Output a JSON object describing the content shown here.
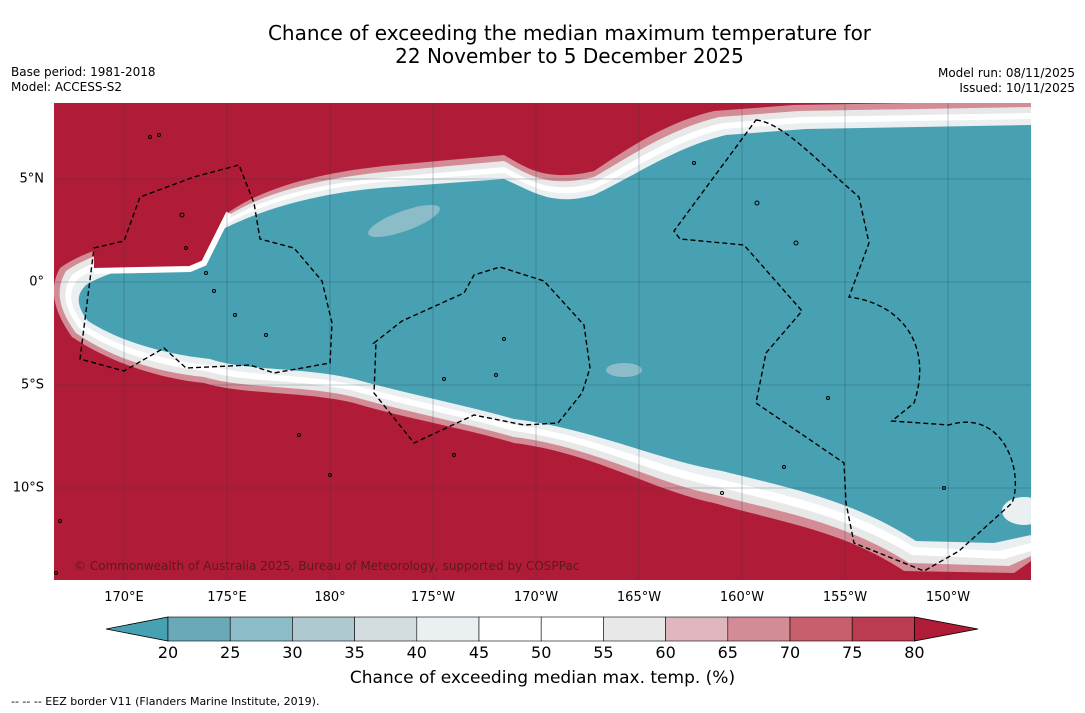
{
  "title": {
    "line1": "Chance of exceeding the median maximum temperature for",
    "line2": "22 November to 5 December 2025"
  },
  "meta_left": {
    "base_period": "Base period: 1981-2018",
    "model": "Model: ACCESS-S2"
  },
  "meta_right": {
    "model_run": "Model run: 08/11/2025",
    "issued": "Issued: 10/11/2025"
  },
  "map": {
    "copyright": "© Commonwealth of Australia 2025, Bureau of Meteorology, supported by COSPPac",
    "longitude_labels": [
      "170°E",
      "175°E",
      "180°",
      "175°W",
      "170°W",
      "165°W",
      "160°W",
      "155°W",
      "150°W"
    ],
    "latitude_labels": [
      "5°N",
      "0°",
      "5°S",
      "10°S"
    ],
    "colors": {
      "high": "#b01c38",
      "low": "#48a1b2",
      "eez_border": "#000000"
    }
  },
  "colorbar": {
    "ticks": [
      "20",
      "25",
      "30",
      "35",
      "40",
      "45",
      "50",
      "55",
      "60",
      "65",
      "70",
      "75",
      "80"
    ],
    "colors": [
      "#48a1b2",
      "#6aaab8",
      "#8cbcc7",
      "#aec9cf",
      "#d3dcdf",
      "#eaeff1",
      "#ffffff",
      "#ffffff",
      "#e8e8e8",
      "#dfb6bd",
      "#d38b95",
      "#c75f6d",
      "#bb3b50",
      "#b01c38"
    ],
    "label": "Chance of exceeding median max. temp. (%)"
  },
  "footer": {
    "legend": "--  --  -- EEZ border V11 (Flanders Marine Institute, 2019)."
  }
}
